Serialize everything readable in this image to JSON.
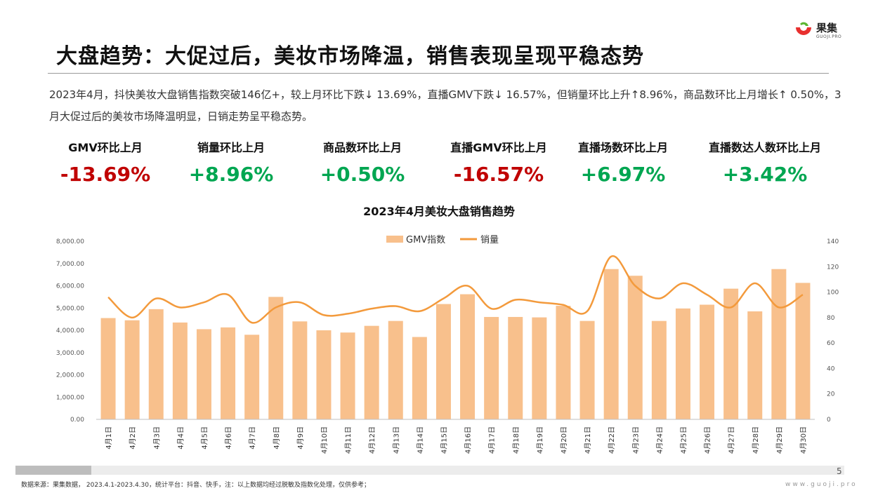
{
  "logo": {
    "name_cn": "果集",
    "name_en": "GUOJI.PRO",
    "colors": [
      "#e8302f",
      "#5cb531"
    ]
  },
  "title": "大盘趋势：大促过后，美妆市场降温，销售表现呈现平稳态势",
  "summary": "2023年4月，抖快美妆大盘销售指数突破146亿+，较上月环比下跌↓ 13.69%，直播GMV下跌↓ 16.57%，但销量环比上升↑8.96%，商品数环比上月增长↑ 0.50%，3月大促过后的美妆市场降温明显，日销走势呈平稳态势。",
  "kpis": [
    {
      "label": "GMV环比上月",
      "value": "-13.69%",
      "color": "#c00000"
    },
    {
      "label": "销量环比上月",
      "value": "+8.96%",
      "color": "#00a651"
    },
    {
      "label": "商品数环比上月",
      "value": "+0.50%",
      "color": "#00a651"
    },
    {
      "label": "直播GMV环比上月",
      "value": "-16.57%",
      "color": "#c00000"
    },
    {
      "label": "直播场数环比上月",
      "value": "+6.97%",
      "color": "#00a651"
    },
    {
      "label": "直播数达人数环比上月",
      "value": "+3.42%",
      "color": "#00a651"
    }
  ],
  "chart_data": {
    "type": "bar",
    "title": "2023年4月美妆大盘销售趋势",
    "categories": [
      "4月1日",
      "4月2日",
      "4月3日",
      "4月4日",
      "4月5日",
      "4月6日",
      "4月7日",
      "4月8日",
      "4月9日",
      "4月10日",
      "4月11日",
      "4月12日",
      "4月13日",
      "4月14日",
      "4月15日",
      "4月16日",
      "4月17日",
      "4月18日",
      "4月19日",
      "4月20日",
      "4月21日",
      "4月22日",
      "4月23日",
      "4月24日",
      "4月25日",
      "4月26日",
      "4月27日",
      "4月28日",
      "4月29日",
      "4月30日"
    ],
    "series": [
      {
        "name": "GMV指数",
        "type": "bar",
        "axis": "left",
        "color": "#f8c08c",
        "values": [
          4550,
          4450,
          4950,
          4350,
          4050,
          4130,
          3800,
          5500,
          4400,
          4000,
          3900,
          4200,
          4420,
          3700,
          5180,
          5620,
          4600,
          4600,
          4580,
          5100,
          4420,
          6750,
          6450,
          4420,
          4980,
          5150,
          5870,
          4850,
          6750,
          6130
        ]
      },
      {
        "name": "销量",
        "type": "line",
        "axis": "right",
        "color": "#f39a3c",
        "values": [
          96,
          80,
          95,
          88,
          92,
          98,
          76,
          88,
          92,
          82,
          83,
          87,
          89,
          85,
          95,
          105,
          87,
          94,
          92,
          90,
          85,
          128,
          105,
          95,
          107,
          98,
          88,
          107,
          88,
          98
        ]
      }
    ],
    "y_left": {
      "min": 0,
      "max": 8000,
      "step": 1000,
      "ticks": [
        "0.00",
        "1,000.00",
        "2,000.00",
        "3,000.00",
        "4,000.00",
        "5,000.00",
        "6,000.00",
        "7,000.00",
        "8,000.00"
      ]
    },
    "y_right": {
      "min": 0,
      "max": 140,
      "step": 20,
      "ticks": [
        "0",
        "20",
        "40",
        "60",
        "80",
        "100",
        "120",
        "140"
      ]
    },
    "legend_position": "top-center",
    "grid": false
  },
  "footer": {
    "page": "5",
    "source": "数据来源：果集数据， 2023.4.1-2023.4.30，统计平台：抖音、快手，注：以上数据均经过脱敏及指数化处理，仅供参考；",
    "site": "www.guoji.pro"
  }
}
